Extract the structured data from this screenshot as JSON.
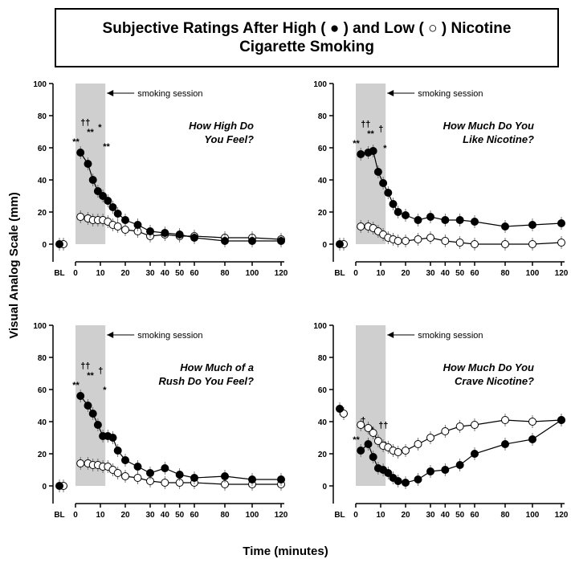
{
  "header": {
    "title_line1": "Subjective Ratings After High ( ● ) and Low ( ○ ) Nicotine",
    "title_line2": "Cigarette Smoking"
  },
  "ylabel": "Visual Analog Scale (mm)",
  "xlabel": "Time (minutes)",
  "session_label": "smoking session",
  "chart_data": [
    {
      "type": "line",
      "title": [
        "How High Do",
        "You Feel?"
      ],
      "x": [
        "BL",
        2,
        5,
        7,
        9,
        11,
        13,
        15,
        17,
        20,
        25,
        30,
        40,
        50,
        60,
        80,
        100,
        120
      ],
      "xticks": [
        "BL",
        "0",
        "10",
        "20",
        "30",
        "40",
        "50",
        "60",
        "80",
        "100",
        "120"
      ],
      "yticks": [
        0,
        20,
        40,
        60,
        80,
        100
      ],
      "ylim": [
        0,
        100
      ],
      "series": [
        {
          "marker": "filled",
          "values": [
            0,
            57,
            50,
            40,
            33,
            30,
            27,
            23,
            19,
            15,
            12,
            8,
            7,
            6,
            4,
            2,
            2,
            2
          ]
        },
        {
          "marker": "open",
          "values": [
            0,
            17,
            16,
            15,
            15,
            15,
            14,
            12,
            11,
            9,
            8,
            5,
            6,
            5,
            5,
            4,
            4,
            3
          ]
        }
      ],
      "annotations": [
        "**",
        "**",
        "**",
        "††",
        "*"
      ]
    },
    {
      "type": "line",
      "title": [
        "How Much Do You",
        "Like Nicotine?"
      ],
      "x": [
        "BL",
        2,
        5,
        7,
        9,
        11,
        13,
        15,
        17,
        20,
        25,
        30,
        40,
        50,
        60,
        80,
        100,
        120
      ],
      "xticks": [
        "BL",
        "0",
        "10",
        "20",
        "30",
        "40",
        "50",
        "60",
        "80",
        "100",
        "120"
      ],
      "yticks": [
        0,
        20,
        40,
        60,
        80,
        100
      ],
      "ylim": [
        0,
        100
      ],
      "series": [
        {
          "marker": "filled",
          "values": [
            0,
            56,
            57,
            58,
            45,
            38,
            32,
            25,
            20,
            18,
            15,
            17,
            15,
            15,
            14,
            11,
            12,
            13
          ]
        },
        {
          "marker": "open",
          "values": [
            0,
            11,
            11,
            10,
            8,
            6,
            4,
            3,
            2,
            2,
            3,
            4,
            2,
            1,
            0,
            0,
            0,
            1
          ]
        }
      ],
      "annotations": [
        "**",
        "**",
        "*",
        "††",
        "†"
      ]
    },
    {
      "type": "line",
      "title": [
        "How Much of a",
        "Rush Do You Feel?"
      ],
      "x": [
        "BL",
        2,
        5,
        7,
        9,
        11,
        13,
        15,
        17,
        20,
        25,
        30,
        40,
        50,
        60,
        80,
        100,
        120
      ],
      "xticks": [
        "BL",
        "0",
        "10",
        "20",
        "30",
        "40",
        "50",
        "60",
        "80",
        "100",
        "120"
      ],
      "yticks": [
        0,
        20,
        40,
        60,
        80,
        100
      ],
      "ylim": [
        0,
        100
      ],
      "series": [
        {
          "marker": "filled",
          "values": [
            0,
            56,
            50,
            45,
            38,
            31,
            31,
            30,
            22,
            16,
            12,
            8,
            11,
            7,
            5,
            6,
            4,
            4
          ]
        },
        {
          "marker": "open",
          "values": [
            0,
            14,
            14,
            13,
            13,
            12,
            12,
            10,
            8,
            6,
            5,
            3,
            2,
            2,
            2,
            1,
            1,
            1
          ]
        }
      ],
      "annotations": [
        "**",
        "**",
        "*",
        "††",
        "†"
      ]
    },
    {
      "type": "line",
      "title": [
        "How Much Do You",
        "Crave Nicotine?"
      ],
      "x": [
        "BL",
        2,
        5,
        7,
        9,
        11,
        13,
        15,
        17,
        20,
        25,
        30,
        40,
        50,
        60,
        80,
        100,
        120
      ],
      "xticks": [
        "BL",
        "0",
        "10",
        "20",
        "30",
        "40",
        "50",
        "60",
        "80",
        "100",
        "120"
      ],
      "yticks": [
        0,
        20,
        40,
        60,
        80,
        100
      ],
      "ylim": [
        0,
        100
      ],
      "series": [
        {
          "marker": "filled",
          "values": [
            48,
            22,
            26,
            18,
            11,
            10,
            8,
            5,
            3,
            2,
            4,
            9,
            10,
            13,
            20,
            26,
            29,
            41
          ]
        },
        {
          "marker": "open",
          "values": [
            45,
            38,
            36,
            33,
            28,
            25,
            24,
            22,
            21,
            22,
            26,
            30,
            34,
            37,
            38,
            41,
            40,
            41
          ]
        }
      ],
      "annotations": [
        "**",
        "**",
        "*",
        "†",
        "††"
      ]
    }
  ]
}
